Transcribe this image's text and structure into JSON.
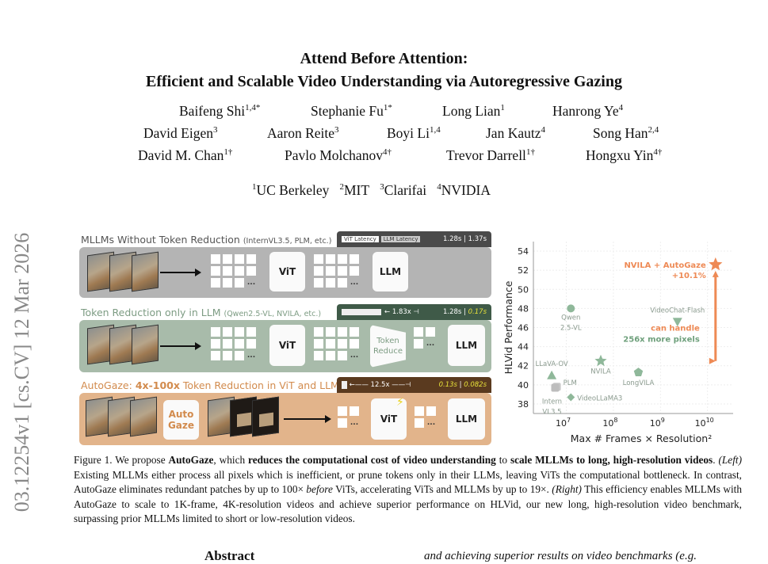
{
  "paper": {
    "title_line1": "Attend Before Attention:",
    "title_line2": "Efficient and Scalable Video Understanding via Autoregressive Gazing",
    "authors": [
      {
        "name": "Baifeng Shi",
        "aff": "1,4*"
      },
      {
        "name": "Stephanie Fu",
        "aff": "1*"
      },
      {
        "name": "Long Lian",
        "aff": "1"
      },
      {
        "name": "Hanrong Ye",
        "aff": "4"
      },
      {
        "name": "David Eigen",
        "aff": "3"
      },
      {
        "name": "Aaron Reite",
        "aff": "3"
      },
      {
        "name": "Boyi Li",
        "aff": "1,4"
      },
      {
        "name": "Jan Kautz",
        "aff": "4"
      },
      {
        "name": "Song Han",
        "aff": "2,4"
      },
      {
        "name": "David M. Chan",
        "aff": "1†"
      },
      {
        "name": "Pavlo Molchanov",
        "aff": "4†"
      },
      {
        "name": "Trevor Darrell",
        "aff": "1†"
      },
      {
        "name": "Hongxu Yin",
        "aff": "4†"
      }
    ],
    "affiliations": [
      {
        "num": "1",
        "name": "UC Berkeley"
      },
      {
        "num": "2",
        "name": "MIT"
      },
      {
        "num": "3",
        "name": "Clarifai"
      },
      {
        "num": "4",
        "name": "NVIDIA"
      }
    ],
    "arxiv_stamp": "03.12254v1  [cs.CV]  12 Mar 2026",
    "abstract_heading": "Abstract",
    "right_col_fragment": "and achieving superior results on video benchmarks (e.g."
  },
  "figure_left": {
    "panels": [
      {
        "title": "MLLMs Without Token Reduction",
        "sub": "(InternVL3.5, PLM, etc.)",
        "legend_vit": "ViT Latency",
        "legend_llm": "LLM Latency",
        "lat_vit": "1.28s",
        "lat_llm": "1.37s",
        "color": "#b4b4b4",
        "text": "#555555",
        "bar": "#4a4a4a"
      },
      {
        "title": "Token Reduction only in LLM",
        "sub": "(Qwen2.5-VL, NVILA, etc.)",
        "speedup": "1.83x",
        "lat_vit": "1.28s",
        "lat_llm": "0.17s",
        "color": "#a8bbaa",
        "text": "#7d9c83",
        "bar": "#3f5a48"
      },
      {
        "title_pre": "AutoGaze: ",
        "title_bold": "4x-100x",
        "title_post": " Token Reduction in ViT and LLM",
        "speedup": "12.5x",
        "lat_vit": "0.13s",
        "lat_llm": "0.082s",
        "color": "#e2b48b",
        "text": "#d28b4d",
        "bar": "#5a3a1f"
      }
    ],
    "labels": {
      "vit": "ViT",
      "llm": "LLM",
      "token_reduce": "Token Reduce",
      "autogaze": "Auto Gaze",
      "ellipsis": "...",
      "sep": "|"
    },
    "accent_yellow": "#e8e23a"
  },
  "chart_data": {
    "type": "scatter",
    "xlabel": "Max # Frames × Resolution²",
    "ylabel": "HLVid Performance",
    "x_scale": "log",
    "xlim": [
      2000000,
      35000000000
    ],
    "ylim": [
      37,
      55
    ],
    "yticks": [
      38,
      40,
      42,
      44,
      46,
      48,
      50,
      52,
      54
    ],
    "xticks": [
      {
        "v": 10000000,
        "label": "10",
        "exp": "7"
      },
      {
        "v": 100000000,
        "label": "10",
        "exp": "8"
      },
      {
        "v": 1000000000,
        "label": "10",
        "exp": "9"
      },
      {
        "v": 10000000000,
        "label": "10",
        "exp": "10"
      }
    ],
    "grid": true,
    "points": [
      {
        "name": "Qwen 2.5-VL",
        "label": [
          "Qwen",
          "2.5-VL"
        ],
        "x": 12500000,
        "y": 48.0,
        "marker": "circle",
        "color": "#8fb89a"
      },
      {
        "name": "NVILA",
        "label": [
          "NVILA"
        ],
        "x": 54000000,
        "y": 42.5,
        "marker": "star",
        "color": "#8fb89a"
      },
      {
        "name": "LongVILA",
        "label": [
          "LongVILA"
        ],
        "x": 340000000,
        "y": 41.3,
        "marker": "pentagon",
        "color": "#8fb89a"
      },
      {
        "name": "VideoChat-Flash",
        "label": [
          "VideoChat-Flash"
        ],
        "x": 2300000000,
        "y": 46.6,
        "marker": "triangle-down",
        "color": "#8fb89a"
      },
      {
        "name": "LLaVA-OV",
        "label": [
          "LLaVA-OV"
        ],
        "x": 4900000,
        "y": 41.0,
        "marker": "triangle",
        "color": "#8fb89a"
      },
      {
        "name": "PLM",
        "label": [
          "PLM"
        ],
        "x": 6300000,
        "y": 39.8,
        "marker": "square",
        "color": "#c8c8c8"
      },
      {
        "name": "Intern VL3.5",
        "label": [
          "Intern",
          "VL3.5"
        ],
        "x": 5800000,
        "y": 39.7,
        "marker": "square",
        "color": "#bdbdbd"
      },
      {
        "name": "VideoLLaMA3",
        "label": [
          "VideoLLaMA3"
        ],
        "x": 12500000,
        "y": 38.7,
        "marker": "diamond",
        "color": "#8fb89a"
      },
      {
        "name": "NVILA + AutoGaze",
        "label": [
          "NVILA + AutoGaze",
          "+10.1%"
        ],
        "x": 14800000000,
        "y": 52.6,
        "marker": "star",
        "color": "#ee8a55"
      }
    ],
    "annotation": {
      "line1": "can handle",
      "line2": "256x more pixels",
      "green": "#6fa07c",
      "orange": "#ee8a55"
    }
  },
  "caption": {
    "fig": "Figure 1.",
    "t1": " We propose ",
    "b1": "AutoGaze",
    "t2": ", which ",
    "b2": "reduces the computational cost of video understanding",
    "t3": " to ",
    "b3": "scale MLLMs to long, high-resolution videos",
    "t4": ". ",
    "i1": "(Left)",
    "t5": " Existing MLLMs either process all pixels which is inefficient, or prune tokens only in their LLMs, leaving ViTs the computational bottleneck. In contrast, AutoGaze eliminates redundant patches by up to 100× ",
    "i2": "before",
    "t6": " ViTs, accelerating ViTs and MLLMs by up to 19×. ",
    "i3": "(Right)",
    "t7": " This efficiency enables MLLMs with AutoGaze to scale to 1K-frame, 4K-resolution videos and achieve superior performance on HLVid, our new long, high-resolution video benchmark, surpassing prior MLLMs limited to short or low-resolution videos."
  }
}
